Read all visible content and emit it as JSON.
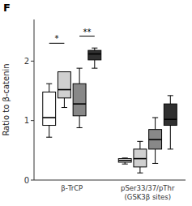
{
  "chart_data": {
    "type": "box",
    "title": "F",
    "y_label": "Ratio to β-catenin",
    "categories": [
      "β-TrCP",
      "pSer33/37/pThr\n(GSK3β sites)"
    ],
    "series": [
      {
        "color": "#ffffff",
        "values": [
          {
            "whislo": 0.72,
            "q1": 0.92,
            "med": 1.05,
            "q3": 1.48,
            "whishi": 1.62
          },
          {
            "whislo": 0.27,
            "q1": 0.3,
            "med": 0.33,
            "q3": 0.36,
            "whishi": 0.37
          }
        ]
      },
      {
        "color": "#d0d0d0",
        "values": [
          {
            "whislo": 1.22,
            "q1": 1.38,
            "med": 1.52,
            "q3": 1.82,
            "whishi": 1.58
          },
          {
            "whislo": 0.12,
            "q1": 0.22,
            "med": 0.36,
            "q3": 0.52,
            "whishi": 0.65
          }
        ]
      },
      {
        "color": "#888888",
        "values": [
          {
            "whislo": 0.88,
            "q1": 1.08,
            "med": 1.28,
            "q3": 1.62,
            "whishi": 1.88
          },
          {
            "whislo": 0.28,
            "q1": 0.52,
            "med": 0.68,
            "q3": 0.85,
            "whishi": 1.05
          }
        ]
      },
      {
        "color": "#303030",
        "values": [
          {
            "whislo": 1.88,
            "q1": 2.02,
            "med": 2.12,
            "q3": 2.18,
            "whishi": 2.22
          },
          {
            "whislo": 0.52,
            "q1": 0.92,
            "med": 1.02,
            "q3": 1.28,
            "whishi": 1.42
          }
        ]
      }
    ],
    "ylim": [
      0,
      2.7
    ],
    "yticks": [
      0,
      1,
      2
    ],
    "grid": false,
    "annotations": [
      {
        "text": "*",
        "y": 2.3,
        "category": 0,
        "series": [
          0,
          1
        ]
      },
      {
        "text": "**",
        "y": 2.42,
        "category": 0,
        "series": [
          2,
          3
        ]
      }
    ]
  }
}
